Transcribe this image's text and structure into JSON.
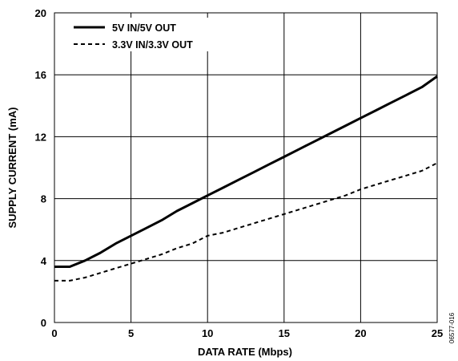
{
  "chart_data": {
    "type": "line",
    "xlabel": "DATA RATE (Mbps)",
    "ylabel": "SUPPLY CURRENT (mA)",
    "xlim": [
      0,
      25
    ],
    "ylim": [
      0,
      20
    ],
    "xticks": [
      0,
      5,
      10,
      15,
      20,
      25
    ],
    "yticks": [
      0,
      4,
      8,
      12,
      16,
      20
    ],
    "grid": true,
    "legend_position": "top-left",
    "series": [
      {
        "name": "5V IN/5V OUT",
        "style": "solid",
        "color": "#000000",
        "x": [
          0,
          1,
          2,
          3,
          4,
          5,
          6,
          7,
          8,
          9,
          10,
          11,
          12,
          13,
          14,
          15,
          16,
          17,
          18,
          19,
          20,
          21,
          22,
          23,
          24,
          25
        ],
        "y": [
          3.6,
          3.6,
          4.0,
          4.5,
          5.1,
          5.6,
          6.1,
          6.6,
          7.2,
          7.7,
          8.2,
          8.7,
          9.2,
          9.7,
          10.2,
          10.7,
          11.2,
          11.7,
          12.2,
          12.7,
          13.2,
          13.7,
          14.2,
          14.7,
          15.2,
          15.9
        ]
      },
      {
        "name": "3.3V IN/3.3V OUT",
        "style": "dashed",
        "color": "#000000",
        "x": [
          0,
          1,
          2,
          3,
          4,
          5,
          6,
          7,
          8,
          9,
          10,
          11,
          12,
          13,
          14,
          15,
          16,
          17,
          18,
          19,
          20,
          21,
          22,
          23,
          24,
          25
        ],
        "y": [
          2.7,
          2.7,
          2.9,
          3.2,
          3.5,
          3.8,
          4.1,
          4.4,
          4.8,
          5.1,
          5.6,
          5.8,
          6.1,
          6.4,
          6.7,
          7.0,
          7.3,
          7.6,
          7.9,
          8.2,
          8.6,
          8.9,
          9.2,
          9.5,
          9.8,
          10.3
        ]
      }
    ]
  },
  "side_code": "06577-016"
}
